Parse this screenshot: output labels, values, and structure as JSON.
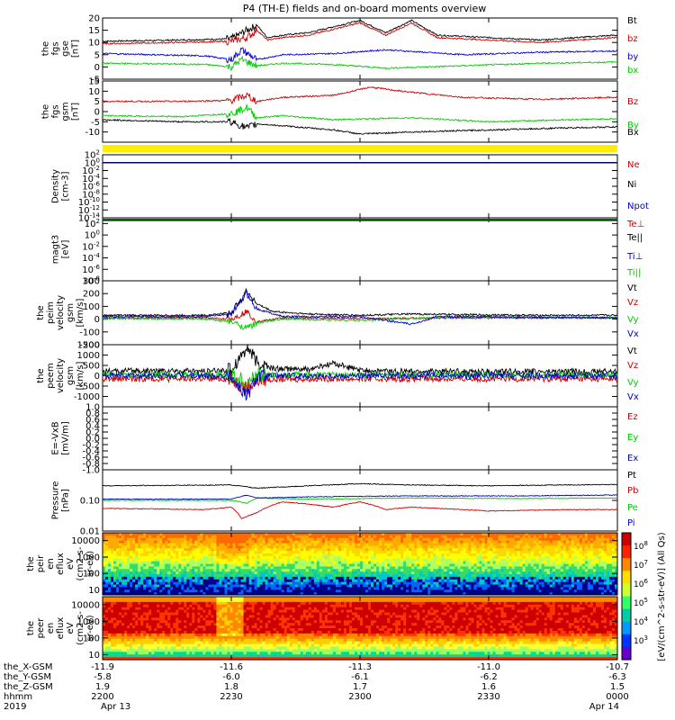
{
  "title": "P4 (TH-E) fields and on-board moments overview",
  "colors": {
    "black": "#000000",
    "red": "#cc0000",
    "green": "#00cc00",
    "blue": "#0000cc",
    "yellow": "#ffee00"
  },
  "colorbar_label": "[eV/(cm^2-s-str-eV)] (All Qs)",
  "chart_data": [
    {
      "type": "line",
      "ylabel": [
        "the",
        "fgs",
        "gse",
        "[nT]"
      ],
      "ylim": [
        -5,
        20
      ],
      "ticks": [
        "20",
        "15",
        "10",
        "5",
        "0",
        "-5"
      ],
      "tick_values": [
        20,
        15,
        10,
        5,
        0,
        -5
      ],
      "legend": [
        "Bt",
        "bz",
        "by",
        "bx"
      ],
      "series": [
        {
          "name": "Bt",
          "color": "black",
          "x": [
            0,
            0.15,
            0.25,
            0.28,
            0.3,
            0.32,
            0.35,
            0.4,
            0.5,
            0.55,
            0.6,
            0.65,
            0.75,
            0.85,
            0.92,
            1.0
          ],
          "y": [
            10.5,
            11,
            11.5,
            15,
            17,
            12,
            13,
            14,
            19,
            14,
            19,
            13,
            12,
            11,
            12,
            13
          ]
        },
        {
          "name": "bz",
          "color": "red",
          "x": [
            0,
            0.15,
            0.25,
            0.28,
            0.3,
            0.32,
            0.35,
            0.4,
            0.5,
            0.55,
            0.6,
            0.65,
            0.75,
            0.85,
            0.92,
            1.0
          ],
          "y": [
            9.5,
            10,
            10.5,
            12,
            15,
            11,
            12,
            13,
            18,
            13,
            18,
            12,
            11,
            10,
            11,
            12
          ]
        },
        {
          "name": "by",
          "color": "blue",
          "x": [
            0,
            0.1,
            0.2,
            0.25,
            0.27,
            0.3,
            0.35,
            0.45,
            0.55,
            0.7,
            0.85,
            1.0
          ],
          "y": [
            5.5,
            5,
            4.5,
            3,
            7,
            3,
            5,
            5.5,
            7,
            5,
            6,
            6.5
          ]
        },
        {
          "name": "bx",
          "color": "green",
          "x": [
            0,
            0.1,
            0.2,
            0.25,
            0.27,
            0.3,
            0.35,
            0.45,
            0.55,
            0.7,
            0.85,
            1.0
          ],
          "y": [
            1.5,
            1.3,
            1,
            0,
            3,
            0.5,
            1.5,
            1,
            -0.5,
            0.5,
            1.5,
            2
          ]
        }
      ]
    },
    {
      "type": "line",
      "ylabel": [
        "the",
        "fgs",
        "gsm",
        "[nT]"
      ],
      "ylim": [
        -15,
        15
      ],
      "ticks": [
        "15",
        "10",
        "5",
        "0",
        "-5",
        "-10"
      ],
      "tick_values": [
        15,
        10,
        5,
        0,
        -5,
        -10
      ],
      "legend": [
        "Bz",
        "By",
        "Bx"
      ],
      "series": [
        {
          "name": "Bz",
          "color": "red",
          "x": [
            0,
            0.15,
            0.25,
            0.28,
            0.3,
            0.35,
            0.45,
            0.52,
            0.58,
            0.7,
            0.85,
            1.0
          ],
          "y": [
            5,
            5,
            5.5,
            8,
            5,
            7,
            8,
            12,
            10,
            7,
            6,
            7
          ]
        },
        {
          "name": "By",
          "color": "green",
          "x": [
            0,
            0.15,
            0.25,
            0.28,
            0.3,
            0.35,
            0.45,
            0.6,
            0.75,
            0.9,
            1.0
          ],
          "y": [
            -2,
            -2.5,
            -1,
            2,
            -3,
            -2,
            -4,
            -3,
            -5,
            -4,
            -3.5
          ]
        },
        {
          "name": "Bx",
          "color": "black",
          "x": [
            0,
            0.15,
            0.25,
            0.28,
            0.3,
            0.35,
            0.45,
            0.5,
            0.6,
            0.75,
            0.9,
            1.0
          ],
          "y": [
            -4,
            -5,
            -5,
            -8,
            -6,
            -7,
            -9,
            -11,
            -10,
            -9,
            -8,
            -7.5
          ]
        }
      ]
    },
    {
      "type": "line",
      "ylabel": [
        "Density",
        "[cm-3]"
      ],
      "scale": "log",
      "ylim": [
        1e-14,
        100.0
      ],
      "ticks": [
        "10^2",
        "10^0",
        "10^-2",
        "10^-4",
        "10^-6",
        "10^-8",
        "10^-10",
        "10^-12",
        "10^-14"
      ],
      "tick_values": [
        100,
        1,
        0.01,
        0.0001,
        1e-06,
        1e-08,
        1e-10,
        1e-12,
        1e-14
      ],
      "legend": [
        "Ne",
        "Ni",
        "Npot"
      ],
      "series": [
        {
          "name": "Ne",
          "color": "red",
          "x": [
            0,
            1
          ],
          "y": [
            1,
            1
          ]
        },
        {
          "name": "Ni",
          "color": "black",
          "x": [
            0,
            1
          ],
          "y": [
            1.2,
            1.2
          ]
        },
        {
          "name": "Npot",
          "color": "blue",
          "x": [
            0,
            1
          ],
          "y": [
            0.9,
            0.9
          ]
        }
      ]
    },
    {
      "type": "line",
      "ylabel": [
        "magt3",
        "[eV]"
      ],
      "scale": "log",
      "ylim": [
        1e-08,
        1000.0
      ],
      "ticks": [
        "10^2",
        "10^0",
        "10^-2",
        "10^-4",
        "10^-6",
        "10^-8"
      ],
      "tick_values": [
        100,
        1,
        0.01,
        0.0001,
        1e-06,
        1e-08
      ],
      "legend": [
        "Te⊥",
        "Te||",
        "Ti⊥",
        "Ti||"
      ],
      "series": [
        {
          "name": "Te⊥",
          "color": "red",
          "x": [
            0,
            1
          ],
          "y": [
            300,
            300
          ]
        },
        {
          "name": "Te||",
          "color": "black",
          "x": [
            0,
            1
          ],
          "y": [
            400,
            400
          ]
        },
        {
          "name": "Ti⊥",
          "color": "blue",
          "x": [
            0,
            1
          ],
          "y": [
            600,
            600
          ]
        },
        {
          "name": "Ti||",
          "color": "green",
          "x": [
            0,
            1
          ],
          "y": [
            500,
            500
          ]
        }
      ]
    },
    {
      "type": "line",
      "ylabel": [
        "the",
        "peim",
        "velocity",
        "gsm",
        "[km/s]"
      ],
      "ylim": [
        -200,
        300
      ],
      "ticks": [
        "300",
        "200",
        "100",
        "0",
        "-100",
        "-200"
      ],
      "tick_values": [
        300,
        200,
        100,
        0,
        -100,
        -200
      ],
      "legend": [
        "Vt",
        "Vz",
        "Vy",
        "Vx"
      ],
      "series": [
        {
          "name": "Vt",
          "color": "black",
          "x": [
            0,
            0.2,
            0.25,
            0.28,
            0.3,
            0.33,
            0.4,
            0.5,
            0.6,
            0.7,
            0.85,
            1.0
          ],
          "y": [
            30,
            30,
            50,
            220,
            120,
            60,
            40,
            30,
            40,
            35,
            30,
            30
          ]
        },
        {
          "name": "Vz",
          "color": "red",
          "x": [
            0,
            0.2,
            0.25,
            0.28,
            0.3,
            0.35,
            0.5,
            0.7,
            1.0
          ],
          "y": [
            10,
            10,
            0,
            60,
            -20,
            10,
            5,
            10,
            10
          ]
        },
        {
          "name": "Vy",
          "color": "green",
          "x": [
            0,
            0.2,
            0.25,
            0.28,
            0.3,
            0.35,
            0.5,
            0.7,
            1.0
          ],
          "y": [
            5,
            0,
            -20,
            -70,
            -30,
            0,
            -10,
            20,
            10
          ]
        },
        {
          "name": "Vx",
          "color": "blue",
          "x": [
            0,
            0.2,
            0.25,
            0.28,
            0.3,
            0.35,
            0.5,
            0.6,
            0.65,
            0.8,
            1.0
          ],
          "y": [
            20,
            20,
            40,
            200,
            80,
            20,
            20,
            -40,
            20,
            15,
            10
          ]
        }
      ]
    },
    {
      "type": "line",
      "ylabel": [
        "the",
        "peem",
        "velocity",
        "gsm",
        "[km/s]"
      ],
      "ylim": [
        -1500,
        1500
      ],
      "ticks": [
        "1500",
        "1000",
        "500",
        "0",
        "-500",
        "-1000"
      ],
      "tick_values": [
        1500,
        1000,
        500,
        0,
        -500,
        -1000
      ],
      "legend": [
        "Vt",
        "Vz",
        "Vy",
        "Vx"
      ],
      "series": [
        {
          "name": "Vt",
          "color": "black",
          "x": [
            0,
            0.1,
            0.2,
            0.25,
            0.28,
            0.3,
            0.33,
            0.4,
            0.45,
            0.5,
            0.6,
            0.8,
            1.0
          ],
          "y": [
            200,
            250,
            200,
            300,
            1400,
            600,
            350,
            300,
            600,
            250,
            200,
            200,
            200
          ]
        },
        {
          "name": "Vz",
          "color": "red",
          "x": [
            0,
            0.25,
            0.28,
            0.3,
            0.4,
            0.6,
            1.0
          ],
          "y": [
            -150,
            -150,
            -600,
            -200,
            -150,
            -150,
            -150
          ]
        },
        {
          "name": "Vy",
          "color": "green",
          "x": [
            0,
            0.25,
            0.28,
            0.3,
            0.4,
            0.6,
            1.0
          ],
          "y": [
            50,
            50,
            -300,
            50,
            50,
            50,
            50
          ]
        },
        {
          "name": "Vx",
          "color": "blue",
          "x": [
            0,
            0.25,
            0.28,
            0.3,
            0.4,
            0.6,
            1.0
          ],
          "y": [
            0,
            0,
            -1000,
            0,
            0,
            0,
            0
          ]
        }
      ]
    },
    {
      "type": "line",
      "ylabel": [
        "E=-VxB",
        "[mV/m]"
      ],
      "ylim": [
        -1,
        1
      ],
      "ticks": [
        "1.0",
        "0.8",
        "0.6",
        "0.4",
        "0.2",
        "0.0",
        "-0.2",
        "-0.4",
        "-0.6",
        "-0.8",
        "-1.0"
      ],
      "tick_values": [
        1,
        0.8,
        0.6,
        0.4,
        0.2,
        0,
        -0.2,
        -0.4,
        -0.6,
        -0.8,
        -1
      ],
      "legend": [
        "Ez",
        "Ey",
        "Ex"
      ],
      "series": []
    },
    {
      "type": "line",
      "ylabel": [
        "Pressure",
        "[nPa]"
      ],
      "scale": "log",
      "ylim": [
        0.01,
        1
      ],
      "ticks": [
        "0.10",
        "0.01"
      ],
      "tick_values": [
        0.1,
        0.01
      ],
      "legend": [
        "Pt",
        "Pb",
        "Pe",
        "Pi"
      ],
      "series": [
        {
          "name": "Pt",
          "color": "black",
          "x": [
            0,
            0.25,
            0.3,
            0.4,
            0.5,
            0.6,
            0.75,
            0.9,
            1.0
          ],
          "y": [
            0.3,
            0.32,
            0.25,
            0.3,
            0.35,
            0.32,
            0.3,
            0.32,
            0.33
          ]
        },
        {
          "name": "Pb",
          "color": "red",
          "x": [
            0,
            0.2,
            0.25,
            0.27,
            0.3,
            0.35,
            0.45,
            0.5,
            0.55,
            0.6,
            0.75,
            0.9,
            1.0
          ],
          "y": [
            0.055,
            0.05,
            0.06,
            0.025,
            0.04,
            0.09,
            0.06,
            0.09,
            0.05,
            0.06,
            0.045,
            0.05,
            0.05
          ]
        },
        {
          "name": "Pe",
          "color": "green",
          "x": [
            0,
            0.25,
            0.28,
            0.3,
            0.4,
            0.6,
            0.8,
            1.0
          ],
          "y": [
            0.1,
            0.1,
            0.08,
            0.12,
            0.11,
            0.12,
            0.115,
            0.12
          ]
        },
        {
          "name": "Pi",
          "color": "blue",
          "x": [
            0,
            0.25,
            0.28,
            0.3,
            0.4,
            0.6,
            0.8,
            1.0
          ],
          "y": [
            0.11,
            0.11,
            0.15,
            0.12,
            0.13,
            0.14,
            0.14,
            0.15
          ]
        }
      ]
    },
    {
      "type": "heatmap",
      "ylabel": [
        "the",
        "peir",
        "en",
        "eflux",
        "eV",
        "(cm2-s-",
        "sr-eV)"
      ],
      "ylim": [
        5,
        30000
      ],
      "ticks": [
        "10000",
        "1000",
        "100",
        "10"
      ],
      "tick_values": [
        10000,
        1000,
        100,
        10
      ],
      "color_ramp": [
        "#ff6a00",
        "#ffaa00",
        "#ffd700",
        "#ffff00",
        "#b0ff60",
        "#33dd66",
        "#00c8c8",
        "#0064ff",
        "#000088"
      ]
    },
    {
      "type": "heatmap",
      "ylabel": [
        "the",
        "peer",
        "en",
        "eflux",
        "eV",
        "(cm2-s-",
        "sr-eV)"
      ],
      "ylim": [
        5,
        30000
      ],
      "ticks": [
        "10000",
        "1000",
        "100",
        "10"
      ],
      "tick_values": [
        10000,
        1000,
        100,
        10
      ],
      "color_ramp": [
        "#cc0000",
        "#ff3300",
        "#ff8800",
        "#ffcc00",
        "#ffff33",
        "#99ff66",
        "#00dd88",
        "#00bbff"
      ]
    }
  ],
  "colorbar": {
    "colors": [
      "#cc0000",
      "#ff2200",
      "#ff8800",
      "#ffdd00",
      "#ccff33",
      "#33ff66",
      "#00ccaa",
      "#0099ff",
      "#0033ff",
      "#6600cc"
    ],
    "ticks": [
      "10^8",
      "10^7",
      "10^6",
      "10^5",
      "10^4",
      "10^3"
    ]
  },
  "x_axis": {
    "rows": [
      {
        "label": "the_X-GSM",
        "values": [
          "-11.9",
          "-11.6",
          "-11.3",
          "-11.0",
          "-10.7"
        ]
      },
      {
        "label": "the_Y-GSM",
        "values": [
          "-5.8",
          "-6.0",
          "-6.1",
          "-6.2",
          "-6.3"
        ]
      },
      {
        "label": "the_Z-GSM",
        "values": [
          "1.9",
          "1.8",
          "1.7",
          "1.6",
          "1.5"
        ]
      },
      {
        "label": "hhmm",
        "values": [
          "2200",
          "2230",
          "2300",
          "2330",
          "0000"
        ]
      },
      {
        "label": "2019",
        "values": [
          "Apr 13",
          "",
          "",
          "",
          "Apr 14"
        ]
      }
    ]
  }
}
